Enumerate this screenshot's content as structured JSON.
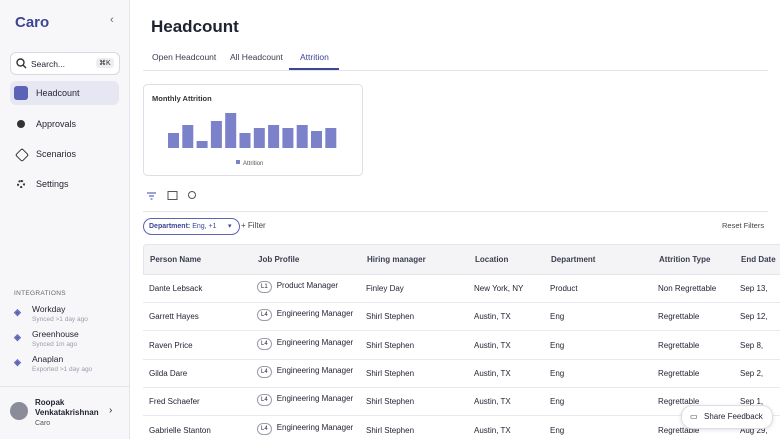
{
  "sidebar": {
    "logo": "Caro",
    "search": "Search...",
    "shortcut": "⌘K",
    "nav": [
      "Headcount",
      "Approvals",
      "Scenarios",
      "Settings"
    ],
    "integrations_title": "INTEGRATIONS",
    "integrations": [
      {
        "name": "Workday",
        "status": "Synced >1 day ago"
      },
      {
        "name": "Greenhouse",
        "status": "Synced 1m ago"
      },
      {
        "name": "Anaplan",
        "status": "Exported >1 day ago"
      }
    ],
    "user": {
      "name": "Roopak Venkatakrishnan",
      "org": "Caro"
    }
  },
  "header": {
    "title": "Headcount",
    "tabs": [
      "Open Headcount",
      "All Headcount",
      "Attrition"
    ]
  },
  "chart_data": {
    "type": "bar",
    "title": "Monthly Attrition",
    "series": [
      {
        "name": "Attrition",
        "color": "#7b82c9",
        "values": [
          15,
          23,
          7,
          27,
          35,
          15,
          20,
          23,
          20,
          23,
          17,
          20
        ]
      }
    ]
  },
  "filters": {
    "chip_label": "Department:",
    "chip_value": "Eng, +1",
    "add": "Filter",
    "reset": "Reset Filters"
  },
  "table": {
    "columns": [
      "Person Name",
      "Job Profile",
      "Hiring manager",
      "Location",
      "Department",
      "Attrition Type",
      "End Date"
    ],
    "rows": [
      {
        "name": "Dante Lebsack",
        "level": "L1",
        "profile": "Product Manager",
        "manager": "Finley Day",
        "location": "New York, NY",
        "department": "Product",
        "attrition_type": "Non Regrettable",
        "end_date": "Sep 13,"
      },
      {
        "name": "Garrett Hayes",
        "level": "L4",
        "profile": "Engineering Manager",
        "manager": "Shirl Stephen",
        "location": "Austin, TX",
        "department": "Eng",
        "attrition_type": "Regrettable",
        "end_date": "Sep 12,"
      },
      {
        "name": "Raven Price",
        "level": "L4",
        "profile": "Engineering Manager",
        "manager": "Shirl Stephen",
        "location": "Austin, TX",
        "department": "Eng",
        "attrition_type": "Regrettable",
        "end_date": "Sep 8,"
      },
      {
        "name": "Gilda Dare",
        "level": "L4",
        "profile": "Engineering Manager",
        "manager": "Shirl Stephen",
        "location": "Austin, TX",
        "department": "Eng",
        "attrition_type": "Regrettable",
        "end_date": "Sep 2,"
      },
      {
        "name": "Fred Schaefer",
        "level": "L4",
        "profile": "Engineering Manager",
        "manager": "Shirl Stephen",
        "location": "Austin, TX",
        "department": "Eng",
        "attrition_type": "Regrettable",
        "end_date": "Sep 1,"
      },
      {
        "name": "Gabrielle Stanton",
        "level": "L4",
        "profile": "Engineering Manager",
        "manager": "Shirl Stephen",
        "location": "Austin, TX",
        "department": "Eng",
        "attrition_type": "Regrettable",
        "end_date": "Aug 29,"
      }
    ]
  },
  "feedback": "Share Feedback"
}
